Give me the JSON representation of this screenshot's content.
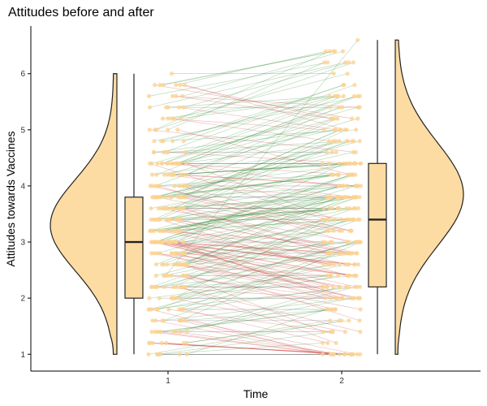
{
  "chart_data": {
    "type": "raincloud",
    "title": "Attitudes before and after",
    "xlabel": "Time",
    "ylabel": "Attitudes towards Vaccines",
    "categories": [
      "1",
      "2"
    ],
    "x_ticks": [
      "1",
      "2"
    ],
    "y_ticks": [
      "1",
      "2",
      "3",
      "4",
      "5",
      "6"
    ],
    "ylim": [
      0.7,
      6.85
    ],
    "grid": false,
    "colors": {
      "violin_fill": "#fddca3",
      "point": "#fcd28f",
      "line_increase": "#2e8b2e",
      "line_decrease": "#cc3333",
      "line_same": "#444444",
      "axis": "#000000"
    },
    "groups": [
      {
        "name": "1",
        "box": {
          "min": 1.0,
          "q1": 2.0,
          "median": 3.0,
          "q3": 3.8,
          "max": 6.0
        },
        "density_range": [
          1.0,
          6.0
        ]
      },
      {
        "name": "2",
        "box": {
          "min": 1.0,
          "q1": 2.2,
          "median": 3.4,
          "q3": 4.4,
          "max": 6.6
        },
        "density_range": [
          1.0,
          6.6
        ]
      }
    ]
  }
}
